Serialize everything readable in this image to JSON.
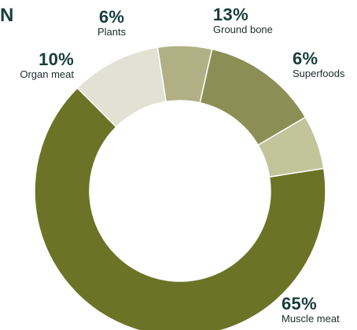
{
  "heading_fragment": "N",
  "chart_data": {
    "type": "pie",
    "style": "donut",
    "title": "",
    "categories": [
      "Muscle meat",
      "Organ meat",
      "Plants",
      "Ground bone",
      "Superfoods"
    ],
    "values": [
      65,
      10,
      6,
      13,
      6
    ],
    "value_labels": [
      "65%",
      "10%",
      "6%",
      "13%",
      "6%"
    ],
    "colors": [
      "#6b7326",
      "#e1e1d4",
      "#b0b084",
      "#8c8f55",
      "#c2c49a"
    ],
    "start_category": "Superfoods",
    "direction": "clockwise",
    "legend": "none"
  },
  "colors": {
    "label_percent": "#173d3a",
    "label_name": "#1d2b2a",
    "background": "#ffffff"
  }
}
